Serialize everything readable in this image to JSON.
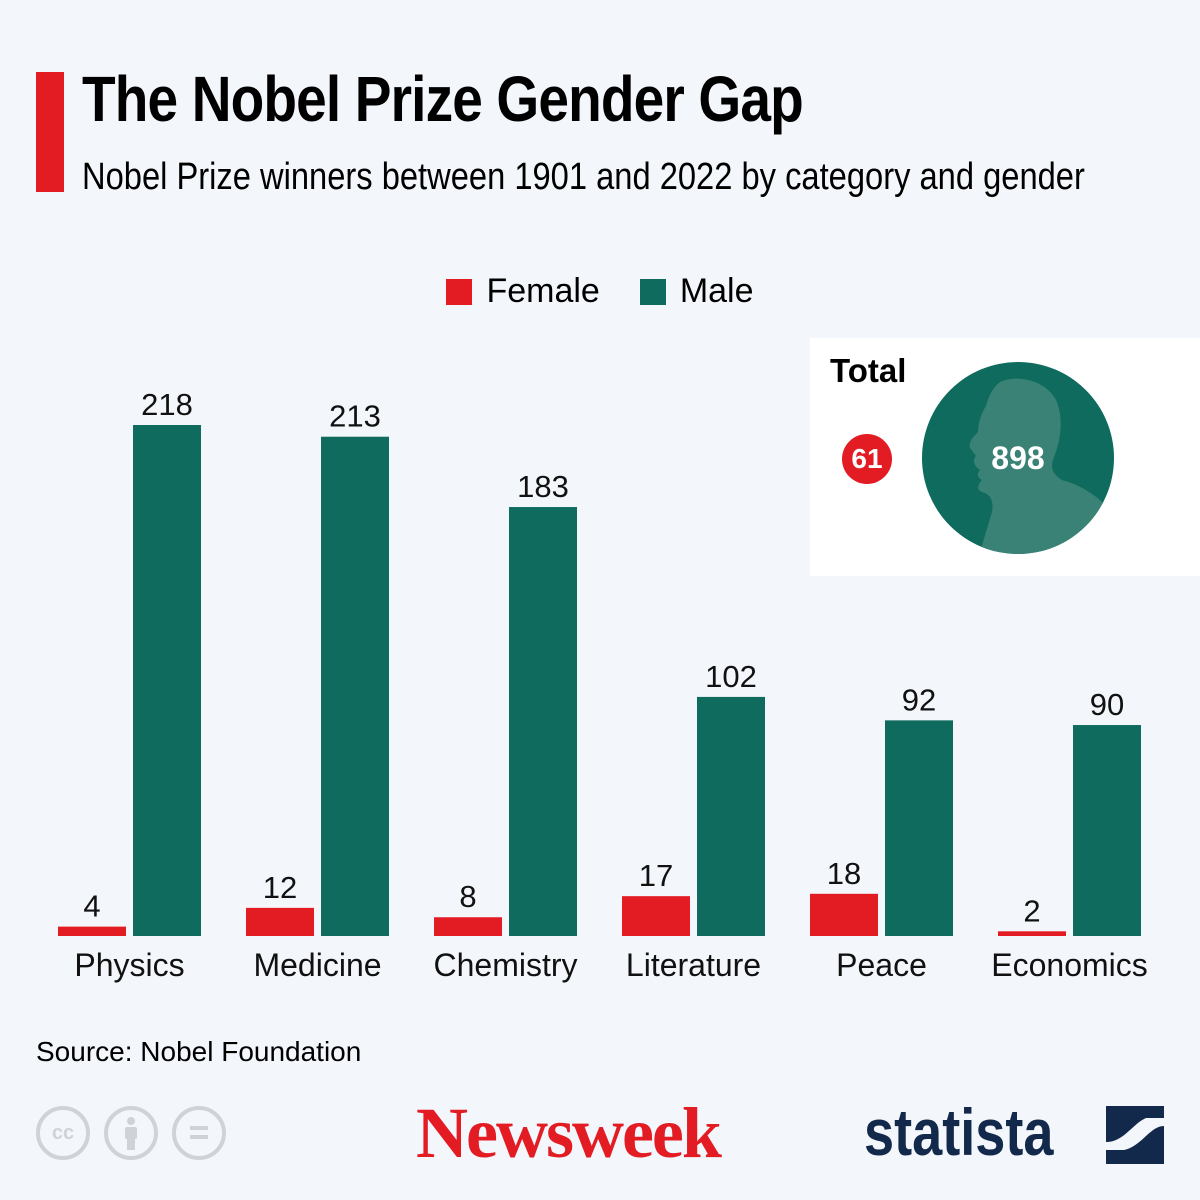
{
  "header": {
    "title": "The Nobel Prize Gender Gap",
    "subtitle": "Nobel Prize winners between 1901 and 2022 by category and gender"
  },
  "colors": {
    "female": "#e31b23",
    "male": "#0f6b5e",
    "accent": "#e31b23",
    "statista": "#13294b"
  },
  "chart_data": {
    "type": "bar",
    "title": "The Nobel Prize Gender Gap",
    "subtitle": "Nobel Prize winners between 1901 and 2022 by category and gender",
    "categories": [
      "Physics",
      "Medicine",
      "Chemistry",
      "Literature",
      "Peace",
      "Economics"
    ],
    "series": [
      {
        "name": "Female",
        "values": [
          4,
          12,
          8,
          17,
          18,
          2
        ]
      },
      {
        "name": "Male",
        "values": [
          218,
          213,
          183,
          102,
          92,
          90
        ]
      }
    ],
    "xlabel": "",
    "ylabel": "",
    "ylim": [
      0,
      218
    ],
    "grid": false,
    "legend": "top-center",
    "data_labels": true,
    "totals": {
      "label": "Total",
      "female": 61,
      "male": 898
    }
  },
  "legend": {
    "female_label": "Female",
    "male_label": "Male"
  },
  "total": {
    "label": "Total",
    "female": "61",
    "male": "898"
  },
  "footer": {
    "source": "Source: Nobel Foundation",
    "cc_icons": [
      "cc-icon",
      "attribution-icon",
      "no-derivatives-icon"
    ],
    "cc_text": "cc",
    "newsweek": "Newsweek",
    "statista": "statista"
  }
}
